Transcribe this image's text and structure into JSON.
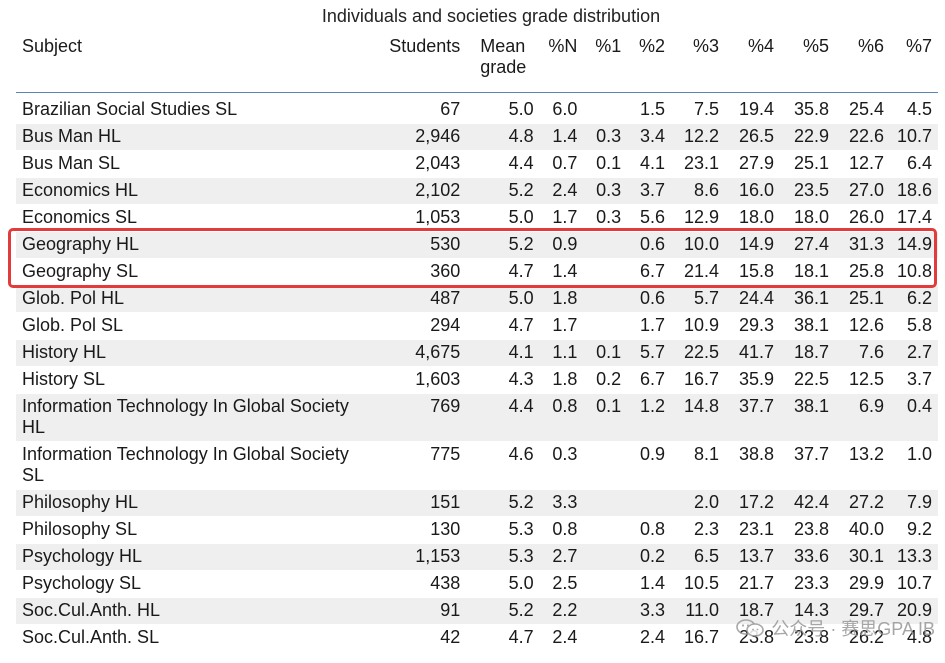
{
  "title": "Individuals and societies grade distribution",
  "columns": [
    "Subject",
    "Students",
    "Mean grade",
    "%N",
    "%1",
    "%2",
    "%3",
    "%4",
    "%5",
    "%6",
    "%7"
  ],
  "rows": [
    {
      "subject": "Brazilian Social Studies SL",
      "students": "67",
      "mean": "5.0",
      "pN": "6.0",
      "p1": "",
      "p2": "1.5",
      "p3": "7.5",
      "p4": "19.4",
      "p5": "35.8",
      "p6": "25.4",
      "p7": "4.5"
    },
    {
      "subject": "Bus Man HL",
      "students": "2,946",
      "mean": "4.8",
      "pN": "1.4",
      "p1": "0.3",
      "p2": "3.4",
      "p3": "12.2",
      "p4": "26.5",
      "p5": "22.9",
      "p6": "22.6",
      "p7": "10.7"
    },
    {
      "subject": "Bus Man SL",
      "students": "2,043",
      "mean": "4.4",
      "pN": "0.7",
      "p1": "0.1",
      "p2": "4.1",
      "p3": "23.1",
      "p4": "27.9",
      "p5": "25.1",
      "p6": "12.7",
      "p7": "6.4"
    },
    {
      "subject": "Economics HL",
      "students": "2,102",
      "mean": "5.2",
      "pN": "2.4",
      "p1": "0.3",
      "p2": "3.7",
      "p3": "8.6",
      "p4": "16.0",
      "p5": "23.5",
      "p6": "27.0",
      "p7": "18.6"
    },
    {
      "subject": "Economics SL",
      "students": "1,053",
      "mean": "5.0",
      "pN": "1.7",
      "p1": "0.3",
      "p2": "5.6",
      "p3": "12.9",
      "p4": "18.0",
      "p5": "18.0",
      "p6": "26.0",
      "p7": "17.4"
    },
    {
      "subject": "Geography HL",
      "students": "530",
      "mean": "5.2",
      "pN": "0.9",
      "p1": "",
      "p2": "0.6",
      "p3": "10.0",
      "p4": "14.9",
      "p5": "27.4",
      "p6": "31.3",
      "p7": "14.9"
    },
    {
      "subject": "Geography SL",
      "students": "360",
      "mean": "4.7",
      "pN": "1.4",
      "p1": "",
      "p2": "6.7",
      "p3": "21.4",
      "p4": "15.8",
      "p5": "18.1",
      "p6": "25.8",
      "p7": "10.8"
    },
    {
      "subject": "Glob. Pol HL",
      "students": "487",
      "mean": "5.0",
      "pN": "1.8",
      "p1": "",
      "p2": "0.6",
      "p3": "5.7",
      "p4": "24.4",
      "p5": "36.1",
      "p6": "25.1",
      "p7": "6.2"
    },
    {
      "subject": "Glob. Pol SL",
      "students": "294",
      "mean": "4.7",
      "pN": "1.7",
      "p1": "",
      "p2": "1.7",
      "p3": "10.9",
      "p4": "29.3",
      "p5": "38.1",
      "p6": "12.6",
      "p7": "5.8"
    },
    {
      "subject": "History HL",
      "students": "4,675",
      "mean": "4.1",
      "pN": "1.1",
      "p1": "0.1",
      "p2": "5.7",
      "p3": "22.5",
      "p4": "41.7",
      "p5": "18.7",
      "p6": "7.6",
      "p7": "2.7"
    },
    {
      "subject": "History SL",
      "students": "1,603",
      "mean": "4.3",
      "pN": "1.8",
      "p1": "0.2",
      "p2": "6.7",
      "p3": "16.7",
      "p4": "35.9",
      "p5": "22.5",
      "p6": "12.5",
      "p7": "3.7"
    },
    {
      "subject": "Information Technology In Global Society HL",
      "students": "769",
      "mean": "4.4",
      "pN": "0.8",
      "p1": "0.1",
      "p2": "1.2",
      "p3": "14.8",
      "p4": "37.7",
      "p5": "38.1",
      "p6": "6.9",
      "p7": "0.4"
    },
    {
      "subject": "Information Technology In Global Society SL",
      "students": "775",
      "mean": "4.6",
      "pN": "0.3",
      "p1": "",
      "p2": "0.9",
      "p3": "8.1",
      "p4": "38.8",
      "p5": "37.7",
      "p6": "13.2",
      "p7": "1.0"
    },
    {
      "subject": "Philosophy HL",
      "students": "151",
      "mean": "5.2",
      "pN": "3.3",
      "p1": "",
      "p2": "",
      "p3": "2.0",
      "p4": "17.2",
      "p5": "42.4",
      "p6": "27.2",
      "p7": "7.9"
    },
    {
      "subject": "Philosophy SL",
      "students": "130",
      "mean": "5.3",
      "pN": "0.8",
      "p1": "",
      "p2": "0.8",
      "p3": "2.3",
      "p4": "23.1",
      "p5": "23.8",
      "p6": "40.0",
      "p7": "9.2"
    },
    {
      "subject": "Psychology HL",
      "students": "1,153",
      "mean": "5.3",
      "pN": "2.7",
      "p1": "",
      "p2": "0.2",
      "p3": "6.5",
      "p4": "13.7",
      "p5": "33.6",
      "p6": "30.1",
      "p7": "13.3"
    },
    {
      "subject": "Psychology SL",
      "students": "438",
      "mean": "5.0",
      "pN": "2.5",
      "p1": "",
      "p2": "1.4",
      "p3": "10.5",
      "p4": "21.7",
      "p5": "23.3",
      "p6": "29.9",
      "p7": "10.7"
    },
    {
      "subject": "Soc.Cul.Anth. HL",
      "students": "91",
      "mean": "5.2",
      "pN": "2.2",
      "p1": "",
      "p2": "3.3",
      "p3": "11.0",
      "p4": "18.7",
      "p5": "14.3",
      "p6": "29.7",
      "p7": "20.9"
    },
    {
      "subject": "Soc.Cul.Anth. SL",
      "students": "42",
      "mean": "4.7",
      "pN": "2.4",
      "p1": "",
      "p2": "2.4",
      "p3": "16.7",
      "p4": "23.8",
      "p5": "23.8",
      "p6": "26.2",
      "p7": "4.8"
    }
  ],
  "highlighted_rows": [
    "Geography HL",
    "Geography SL"
  ],
  "highlight_color": "#e23b3b",
  "watermark": {
    "icon": "wechat-icon",
    "text": "公众号 · 赛思GPA IB"
  }
}
